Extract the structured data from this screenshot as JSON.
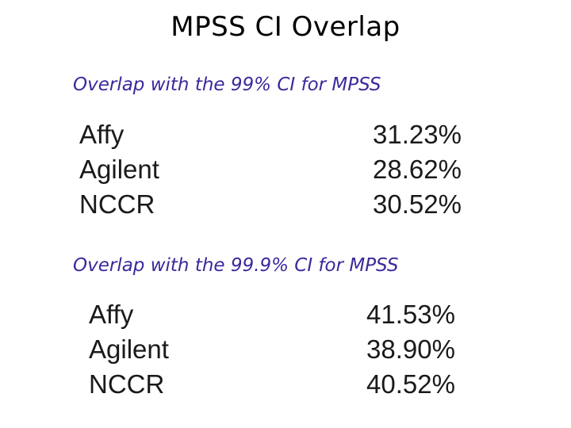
{
  "title": "MPSS CI Overlap",
  "sections": [
    {
      "heading": "Overlap with the 99% CI for MPSS",
      "rows": [
        {
          "name": "Affy",
          "value": "31.23%"
        },
        {
          "name": "Agilent",
          "value": "28.62%"
        },
        {
          "name": "NCCR",
          "value": "30.52%"
        }
      ]
    },
    {
      "heading": "Overlap with the 99.9% CI for MPSS",
      "rows": [
        {
          "name": "Affy",
          "value": "41.53%"
        },
        {
          "name": "Agilent",
          "value": "38.90%"
        },
        {
          "name": "NCCR",
          "value": "40.52%"
        }
      ]
    }
  ]
}
